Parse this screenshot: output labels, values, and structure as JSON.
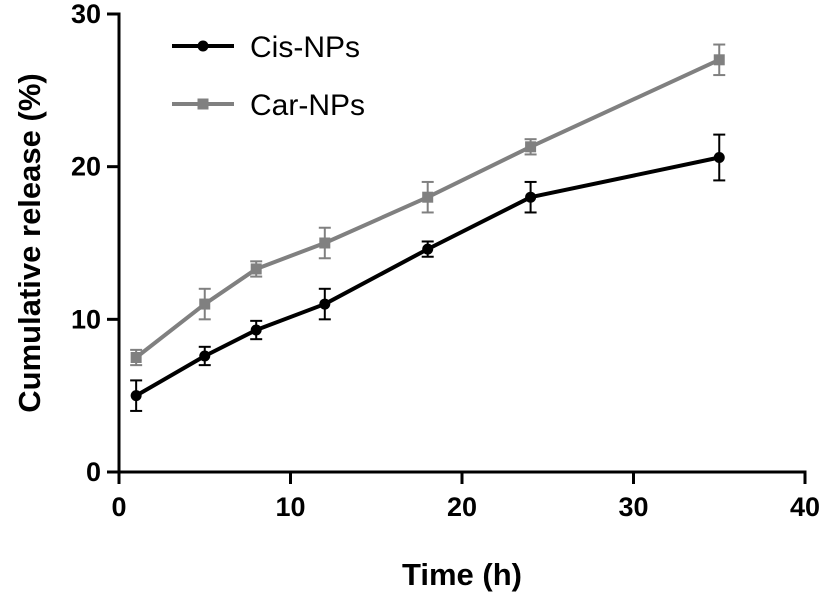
{
  "chart_data": {
    "type": "line",
    "title": "",
    "xlabel": "Time (h)",
    "ylabel": "Cumulative release (%)",
    "xlim": [
      0,
      40
    ],
    "ylim": [
      0,
      30
    ],
    "xticks": [
      0,
      10,
      20,
      30,
      40
    ],
    "yticks": [
      0,
      10,
      20,
      30
    ],
    "grid": false,
    "legend_position": "top-left",
    "series": [
      {
        "name": "Cis-NPs",
        "color": "#000000",
        "marker": "circle",
        "x": [
          1,
          5,
          8,
          12,
          18,
          24,
          35
        ],
        "y": [
          5.0,
          7.6,
          9.3,
          11.0,
          14.6,
          18.0,
          20.6
        ],
        "error": [
          1.0,
          0.6,
          0.6,
          1.0,
          0.5,
          1.0,
          1.5
        ]
      },
      {
        "name": "Car-NPs",
        "color": "#808080",
        "marker": "square",
        "x": [
          1,
          5,
          8,
          12,
          18,
          24,
          35
        ],
        "y": [
          7.5,
          11.0,
          13.3,
          15.0,
          18.0,
          21.3,
          27.0
        ],
        "error": [
          0.5,
          1.0,
          0.5,
          1.0,
          1.0,
          0.5,
          1.0
        ]
      }
    ]
  }
}
